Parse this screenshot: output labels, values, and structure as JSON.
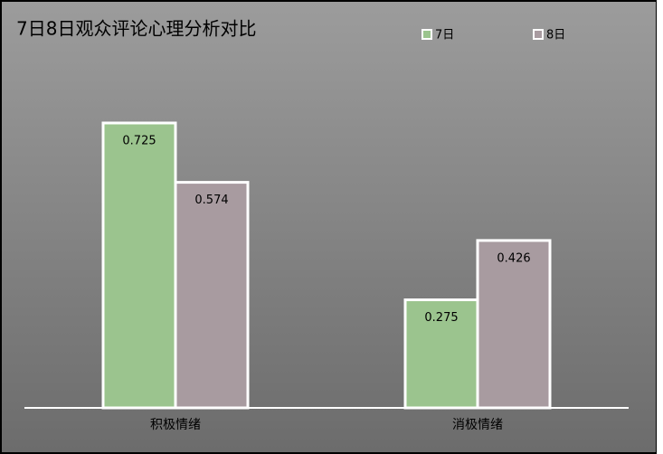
{
  "chart_data": {
    "type": "bar",
    "title": "7日8日观众评论心理分析对比",
    "categories": [
      "积极情绪",
      "消极情绪"
    ],
    "series": [
      {
        "name": "7日",
        "color": "#9bc48e",
        "values": [
          0.725,
          0.275
        ]
      },
      {
        "name": "8日",
        "color": "#a89ba0",
        "values": [
          0.574,
          0.426
        ]
      }
    ],
    "ylim": [
      0,
      0.8
    ],
    "legend": "top-right"
  }
}
